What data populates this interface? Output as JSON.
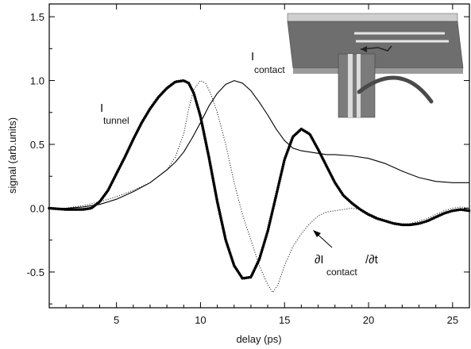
{
  "chart_data": {
    "type": "line",
    "xlabel": "delay (ps)",
    "ylabel": "signal (arb.units)",
    "xlim": [
      1,
      26
    ],
    "ylim": [
      -0.78,
      1.6
    ],
    "x_ticks": [
      5,
      10,
      15,
      20,
      25
    ],
    "x_tick_labels": [
      "5",
      "10",
      "15",
      "20",
      "25"
    ],
    "y_ticks": [
      -0.5,
      0.0,
      0.5,
      1.0,
      1.5
    ],
    "y_tick_labels": [
      "-0.5",
      "0.0",
      "0.5",
      "1.0",
      "1.5"
    ],
    "grid": false,
    "annotations": {
      "tunnel": {
        "main": "I",
        "sub": "tunnel"
      },
      "contact": {
        "main": "I",
        "sub": "contact"
      },
      "derivative": {
        "prefix": "∂I",
        "sub": "contact",
        "suffix": "/∂t"
      }
    },
    "series": [
      {
        "style": "thick-dotted",
        "color": "#000000",
        "x": [
          1,
          2,
          3,
          3.5,
          4,
          4.5,
          5,
          5.5,
          6,
          6.5,
          7,
          7.5,
          8,
          8.5,
          9,
          9.3,
          9.6,
          10,
          10.5,
          11,
          11.5,
          12,
          12.5,
          13,
          13.5,
          14,
          14.5,
          15,
          15.5,
          16,
          16.5,
          17,
          17.5,
          18,
          18.5,
          19,
          19.5,
          20,
          20.5,
          21,
          21.5,
          22,
          22.5,
          23,
          23.5,
          24,
          24.5,
          25,
          25.5,
          26
        ],
        "y": [
          0.0,
          -0.01,
          -0.01,
          0.0,
          0.05,
          0.14,
          0.27,
          0.4,
          0.54,
          0.67,
          0.78,
          0.87,
          0.94,
          0.99,
          1.0,
          0.98,
          0.9,
          0.72,
          0.4,
          0.05,
          -0.25,
          -0.45,
          -0.55,
          -0.54,
          -0.4,
          -0.18,
          0.1,
          0.38,
          0.56,
          0.62,
          0.58,
          0.46,
          0.33,
          0.2,
          0.1,
          0.04,
          -0.01,
          -0.05,
          -0.08,
          -0.1,
          -0.12,
          -0.13,
          -0.13,
          -0.12,
          -0.1,
          -0.07,
          -0.04,
          -0.02,
          -0.01,
          -0.02
        ]
      },
      {
        "style": "thin-solid",
        "color": "#000000",
        "x": [
          1,
          2,
          3,
          4,
          5,
          6,
          7,
          8,
          8.5,
          9,
          9.5,
          10,
          10.5,
          11,
          11.5,
          12,
          12.5,
          13,
          13.5,
          14,
          14.5,
          15,
          15.5,
          16,
          16.5,
          17,
          17.5,
          18,
          19,
          20,
          21,
          22,
          23,
          24,
          25,
          26
        ],
        "y": [
          0.0,
          0.0,
          0.01,
          0.03,
          0.07,
          0.13,
          0.2,
          0.3,
          0.36,
          0.44,
          0.55,
          0.67,
          0.8,
          0.9,
          0.97,
          1.0,
          0.98,
          0.92,
          0.83,
          0.73,
          0.62,
          0.53,
          0.47,
          0.45,
          0.44,
          0.43,
          0.42,
          0.42,
          0.41,
          0.39,
          0.35,
          0.29,
          0.24,
          0.21,
          0.2,
          0.2
        ]
      },
      {
        "style": "dotted",
        "color": "#000000",
        "x": [
          1,
          2,
          3,
          4,
          5,
          6,
          7,
          8,
          8.5,
          9,
          9.3,
          9.6,
          10,
          10.3,
          10.6,
          11,
          11.5,
          12,
          12.5,
          13,
          13.5,
          14,
          14.3,
          14.6,
          15,
          15.5,
          16,
          16.5,
          17,
          17.5,
          18,
          18.5,
          19,
          19.5,
          20,
          20.5,
          21,
          21.5,
          22,
          22.5,
          23,
          23.5,
          24,
          24.5,
          25,
          25.5,
          26
        ],
        "y": [
          0.0,
          0.0,
          0.02,
          0.05,
          0.09,
          0.14,
          0.2,
          0.3,
          0.4,
          0.58,
          0.78,
          0.93,
          1.0,
          0.98,
          0.9,
          0.75,
          0.5,
          0.2,
          -0.05,
          -0.25,
          -0.45,
          -0.6,
          -0.66,
          -0.6,
          -0.45,
          -0.3,
          -0.2,
          -0.12,
          -0.06,
          -0.03,
          -0.02,
          -0.01,
          0.0,
          -0.01,
          -0.04,
          -0.07,
          -0.1,
          -0.12,
          -0.13,
          -0.12,
          -0.1,
          -0.08,
          -0.05,
          -0.02,
          0.0,
          0.01,
          0.0
        ]
      }
    ]
  }
}
